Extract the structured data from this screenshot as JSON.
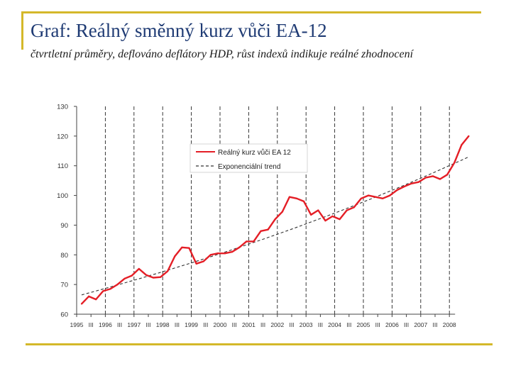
{
  "slide": {
    "title": "Graf: Reálný směnný kurz vůči EA-12",
    "subtitle": "čtvrtletní průměry, deflováno deflátory HDP, růst indexů indikuje reálné zhodnocení",
    "accent_color": "#d4b82a",
    "title_color": "#1f3b74"
  },
  "chart_data": {
    "type": "line",
    "title": "",
    "xlabel": "",
    "ylabel": "",
    "ylim": [
      60,
      130
    ],
    "yticks": [
      60,
      70,
      80,
      90,
      100,
      110,
      120,
      130
    ],
    "x_tick_labels": [
      "1995",
      "III",
      "1996",
      "III",
      "1997",
      "III",
      "1998",
      "III",
      "1999",
      "III",
      "2000",
      "III",
      "2001",
      "III",
      "2002",
      "III",
      "2003",
      "III",
      "2004",
      "III",
      "2005",
      "III",
      "2006",
      "III",
      "2007",
      "III",
      "2008"
    ],
    "grid": "vertical dashed at each year",
    "legend_position": "top-left",
    "series": [
      {
        "name": "Reálný kurz vůči EA 12",
        "color": "#e41e26",
        "values": [
          63.5,
          66,
          65,
          67.8,
          68.5,
          70,
          72,
          73,
          75.3,
          73.2,
          72.3,
          72.5,
          74.5,
          79.5,
          82.5,
          82.3,
          77,
          77.8,
          80,
          80.5,
          80.5,
          81,
          82.5,
          84.5,
          84.5,
          88,
          88.5,
          92,
          94.5,
          99.5,
          99,
          98,
          93.5,
          95,
          91.5,
          93,
          92,
          95,
          96,
          99,
          100,
          99.5,
          99,
          100,
          101.8,
          103,
          104,
          104.5,
          106,
          106.5,
          105.5,
          107,
          111,
          117,
          120
        ]
      },
      {
        "name": "Exponenciální trend",
        "color": "#333333",
        "dashed": true,
        "values": [
          66.5,
          113
        ]
      }
    ]
  }
}
